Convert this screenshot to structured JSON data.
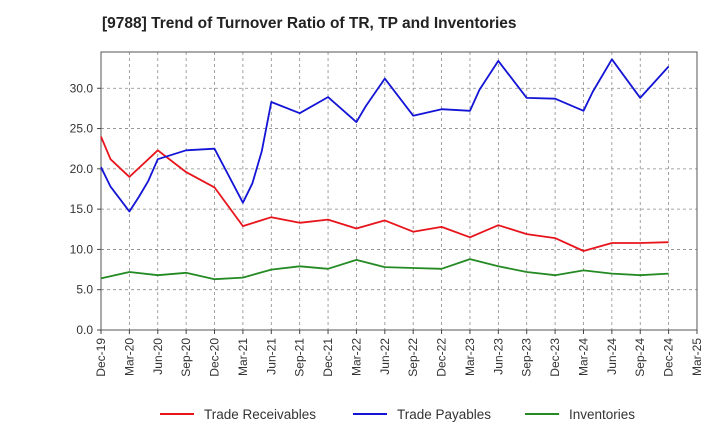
{
  "chart_data": {
    "type": "line",
    "title": "[9788]  Trend of Turnover Ratio of TR, TP and Inventories",
    "xlabel": "",
    "ylabel": "",
    "ylim": [
      0,
      34.5
    ],
    "yticks": [
      "0.0",
      "5.0",
      "10.0",
      "15.0",
      "20.0",
      "25.0",
      "30.0"
    ],
    "ytick_values": [
      0,
      5,
      10,
      15,
      20,
      25,
      30
    ],
    "xticks": [
      "Dec-19",
      "Mar-20",
      "Jun-20",
      "Sep-20",
      "Dec-20",
      "Mar-21",
      "Jun-21",
      "Sep-21",
      "Dec-21",
      "Mar-22",
      "Jun-22",
      "Sep-22",
      "Dec-22",
      "Mar-23",
      "Jun-23",
      "Sep-23",
      "Dec-23",
      "Mar-24",
      "Jun-24",
      "Sep-24",
      "Dec-24",
      "Mar-25"
    ],
    "x": [
      "Dec-19",
      "Jan-20",
      "Mar-20",
      "Apr-20",
      "May-20",
      "Jun-20",
      "Sep-20",
      "Dec-20",
      "Mar-21",
      "Apr-21",
      "May-21",
      "Jun-21",
      "Sep-21",
      "Dec-21",
      "Mar-22",
      "Apr-22",
      "Jun-22",
      "Sep-22",
      "Dec-22",
      "Mar-23",
      "Apr-23",
      "Jun-23",
      "Sep-23",
      "Dec-23",
      "Mar-24",
      "Apr-24",
      "Jun-24",
      "Sep-24",
      "Dec-24"
    ],
    "grid": true,
    "legend_position": "bottom",
    "series": [
      {
        "name": "Trade Receivables",
        "color": "#e8141c",
        "points": [
          [
            "Dec-19",
            24.0
          ],
          [
            "Jan-20",
            21.2
          ],
          [
            "Mar-20",
            19.0
          ],
          [
            "Jun-20",
            22.3
          ],
          [
            "Sep-20",
            19.6
          ],
          [
            "Dec-20",
            17.7
          ],
          [
            "Mar-21",
            12.9
          ],
          [
            "Jun-21",
            14.0
          ],
          [
            "Sep-21",
            13.3
          ],
          [
            "Dec-21",
            13.7
          ],
          [
            "Mar-22",
            12.6
          ],
          [
            "Jun-22",
            13.6
          ],
          [
            "Sep-22",
            12.2
          ],
          [
            "Dec-22",
            12.8
          ],
          [
            "Mar-23",
            11.5
          ],
          [
            "Jun-23",
            13.0
          ],
          [
            "Sep-23",
            11.9
          ],
          [
            "Dec-23",
            11.4
          ],
          [
            "Mar-24",
            9.8
          ],
          [
            "Jun-24",
            10.8
          ],
          [
            "Sep-24",
            10.8
          ],
          [
            "Dec-24",
            10.9
          ]
        ]
      },
      {
        "name": "Trade Payables",
        "color": "#1414d6",
        "points": [
          [
            "Dec-19",
            20.2
          ],
          [
            "Jan-20",
            17.8
          ],
          [
            "Mar-20",
            14.7
          ],
          [
            "Apr-20",
            16.5
          ],
          [
            "May-20",
            18.5
          ],
          [
            "Jun-20",
            21.2
          ],
          [
            "Sep-20",
            22.3
          ],
          [
            "Dec-20",
            22.5
          ],
          [
            "Mar-21",
            15.8
          ],
          [
            "Apr-21",
            18.2
          ],
          [
            "May-21",
            22.2
          ],
          [
            "Jun-21",
            28.3
          ],
          [
            "Sep-21",
            26.9
          ],
          [
            "Dec-21",
            28.9
          ],
          [
            "Mar-22",
            25.8
          ],
          [
            "Apr-22",
            27.8
          ],
          [
            "Jun-22",
            31.2
          ],
          [
            "Sep-22",
            26.6
          ],
          [
            "Dec-22",
            27.4
          ],
          [
            "Mar-23",
            27.2
          ],
          [
            "Apr-23",
            29.8
          ],
          [
            "Jun-23",
            33.4
          ],
          [
            "Sep-23",
            28.8
          ],
          [
            "Dec-23",
            28.7
          ],
          [
            "Mar-24",
            27.2
          ],
          [
            "Apr-24",
            29.6
          ],
          [
            "Jun-24",
            33.6
          ],
          [
            "Sep-24",
            28.8
          ],
          [
            "Dec-24",
            32.7
          ]
        ]
      },
      {
        "name": "Inventories",
        "color": "#248a24",
        "points": [
          [
            "Dec-19",
            6.4
          ],
          [
            "Mar-20",
            7.2
          ],
          [
            "Jun-20",
            6.8
          ],
          [
            "Sep-20",
            7.1
          ],
          [
            "Dec-20",
            6.3
          ],
          [
            "Mar-21",
            6.5
          ],
          [
            "Jun-21",
            7.5
          ],
          [
            "Sep-21",
            7.9
          ],
          [
            "Dec-21",
            7.6
          ],
          [
            "Mar-22",
            8.7
          ],
          [
            "Jun-22",
            7.8
          ],
          [
            "Sep-22",
            7.7
          ],
          [
            "Dec-22",
            7.6
          ],
          [
            "Mar-23",
            8.8
          ],
          [
            "Jun-23",
            7.9
          ],
          [
            "Sep-23",
            7.2
          ],
          [
            "Dec-23",
            6.8
          ],
          [
            "Mar-24",
            7.4
          ],
          [
            "Jun-24",
            7.0
          ],
          [
            "Sep-24",
            6.8
          ],
          [
            "Dec-24",
            7.0
          ]
        ]
      }
    ]
  }
}
